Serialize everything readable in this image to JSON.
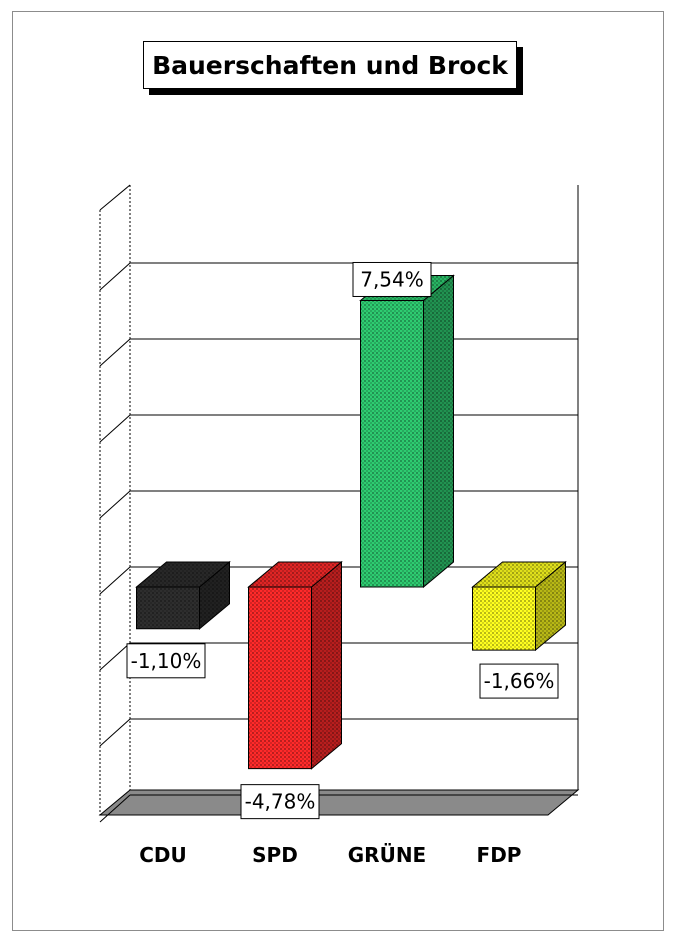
{
  "chart_data": {
    "type": "bar",
    "title": "Bauerschaften und Brock",
    "categories": [
      "CDU",
      "SPD",
      "GRÜNE",
      "FDP"
    ],
    "values": [
      -1.1,
      -4.78,
      7.54,
      -1.66
    ],
    "value_labels": [
      "-1,10%",
      "-4,78%",
      "7,54%",
      "-1,66%"
    ],
    "colors": [
      "#2e2e2e",
      "#ff2a2a",
      "#2ecc71",
      "#ffff1f"
    ],
    "ylim": [
      -6,
      9
    ],
    "grid": true,
    "style": "3d"
  }
}
